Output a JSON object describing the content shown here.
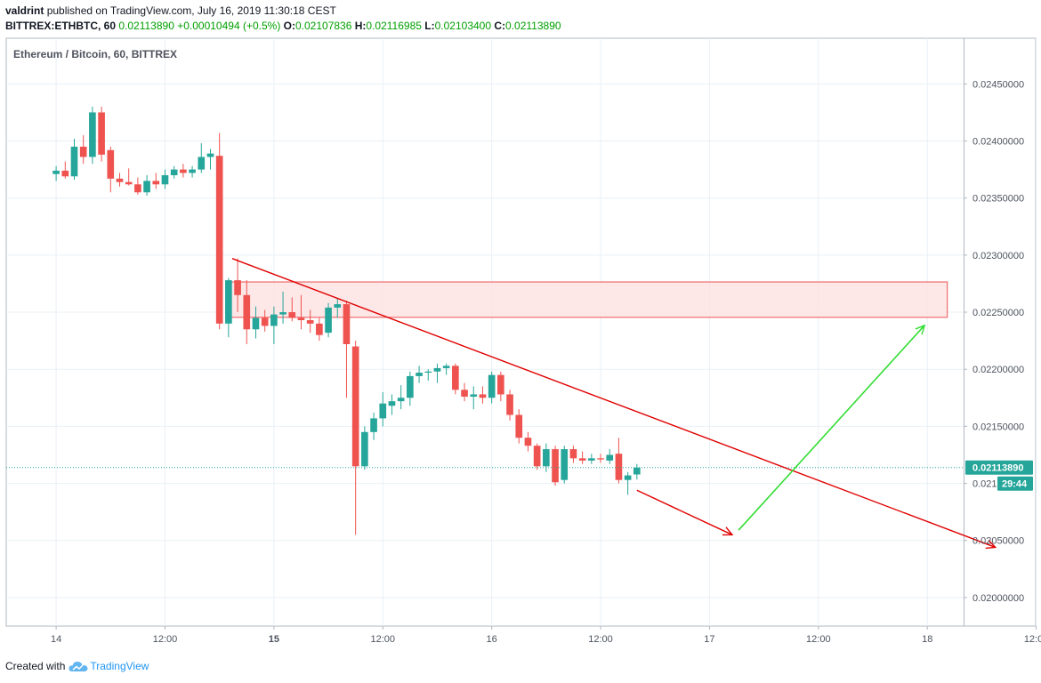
{
  "header": {
    "user": "valdrint",
    "published_text": "published on TradingView.com, July 16, 2019 11:30:18 CEST",
    "symbol": "BITTREX:ETHBTC, 60",
    "last": "0.02113890",
    "change": "+0.00010494 (+0.5%)",
    "o_label": "O:",
    "o_value": "0.02107836",
    "h_label": "H:",
    "h_value": "0.02116985",
    "l_label": "L:",
    "l_value": "0.02103400",
    "c_label": "C:",
    "c_value": "0.02113890"
  },
  "footer": {
    "created_with": "Created with",
    "brand": "TradingView"
  },
  "colors": {
    "up": "#26a69a",
    "down": "#ef5350",
    "trendline": "#e00000",
    "arrow_green": "#33dd33",
    "zone_fill": "#fde3e3",
    "zone_stroke": "#ef6b6b",
    "price_tag": "#26a69a",
    "grid": "#e9f0f6"
  },
  "chart_data": {
    "type": "candlestick",
    "title": "Ethereum / Bitcoin, 60, BITTREX",
    "x_tick_labels": [
      "14",
      "12:00",
      "15",
      "12:00",
      "16",
      "12:00",
      "17",
      "12:00",
      "18",
      "12:00"
    ],
    "x_tick_bold": [
      false,
      false,
      true,
      false,
      false,
      false,
      false,
      false,
      false,
      false
    ],
    "y_tick_labels": [
      "0.02450000",
      "0.02400000",
      "0.02350000",
      "0.02300000",
      "0.02250000",
      "0.02200000",
      "0.02150000",
      "0.02100000",
      "0.02050000",
      "0.02000000"
    ],
    "y_tick_values": [
      0.0245,
      0.024,
      0.0235,
      0.023,
      0.0225,
      0.022,
      0.0215,
      0.021,
      0.0205,
      0.02
    ],
    "x_range_hours": [
      -5.5,
      100
    ],
    "y_range": [
      0.01975,
      0.0249
    ],
    "current_price": 0.0211389,
    "current_price_label": "0.02113890",
    "countdown_label": "29:44",
    "candles": [
      {
        "t": 0,
        "o": 0.02371,
        "h": 0.02378,
        "l": 0.02365,
        "c": 0.02374
      },
      {
        "t": 1,
        "o": 0.02374,
        "h": 0.02382,
        "l": 0.02367,
        "c": 0.02369
      },
      {
        "t": 2,
        "o": 0.02369,
        "h": 0.02402,
        "l": 0.02366,
        "c": 0.02395
      },
      {
        "t": 3,
        "o": 0.02395,
        "h": 0.02405,
        "l": 0.0238,
        "c": 0.02386
      },
      {
        "t": 4,
        "o": 0.02386,
        "h": 0.0243,
        "l": 0.0238,
        "c": 0.02425
      },
      {
        "t": 5,
        "o": 0.02425,
        "h": 0.0243,
        "l": 0.02382,
        "c": 0.02388
      },
      {
        "t": 6,
        "o": 0.02392,
        "h": 0.02395,
        "l": 0.02355,
        "c": 0.02367
      },
      {
        "t": 7,
        "o": 0.02367,
        "h": 0.02372,
        "l": 0.0236,
        "c": 0.02364
      },
      {
        "t": 8,
        "o": 0.02364,
        "h": 0.02376,
        "l": 0.02361,
        "c": 0.02362
      },
      {
        "t": 9,
        "o": 0.02362,
        "h": 0.02368,
        "l": 0.02353,
        "c": 0.02355
      },
      {
        "t": 10,
        "o": 0.02355,
        "h": 0.0237,
        "l": 0.02352,
        "c": 0.02365
      },
      {
        "t": 11,
        "o": 0.02365,
        "h": 0.02372,
        "l": 0.02358,
        "c": 0.02362
      },
      {
        "t": 12,
        "o": 0.02362,
        "h": 0.02375,
        "l": 0.02358,
        "c": 0.0237
      },
      {
        "t": 13,
        "o": 0.0237,
        "h": 0.02378,
        "l": 0.02367,
        "c": 0.02375
      },
      {
        "t": 14,
        "o": 0.02375,
        "h": 0.0238,
        "l": 0.02368,
        "c": 0.02372
      },
      {
        "t": 15,
        "o": 0.02372,
        "h": 0.02378,
        "l": 0.02368,
        "c": 0.02375
      },
      {
        "t": 16,
        "o": 0.02375,
        "h": 0.02398,
        "l": 0.02372,
        "c": 0.02386
      },
      {
        "t": 17,
        "o": 0.02386,
        "h": 0.02393,
        "l": 0.02375,
        "c": 0.02389
      },
      {
        "t": 18,
        "o": 0.02387,
        "h": 0.02407,
        "l": 0.02235,
        "c": 0.0224
      },
      {
        "t": 19,
        "o": 0.0224,
        "h": 0.0228,
        "l": 0.02228,
        "c": 0.02278
      },
      {
        "t": 20,
        "o": 0.02278,
        "h": 0.02297,
        "l": 0.0225,
        "c": 0.02265
      },
      {
        "t": 21,
        "o": 0.02265,
        "h": 0.02278,
        "l": 0.02222,
        "c": 0.02235
      },
      {
        "t": 22,
        "o": 0.02235,
        "h": 0.02255,
        "l": 0.02227,
        "c": 0.02245
      },
      {
        "t": 23,
        "o": 0.02245,
        "h": 0.02252,
        "l": 0.02233,
        "c": 0.02238
      },
      {
        "t": 24,
        "o": 0.02238,
        "h": 0.02255,
        "l": 0.02222,
        "c": 0.02248
      },
      {
        "t": 25,
        "o": 0.02248,
        "h": 0.02268,
        "l": 0.0224,
        "c": 0.0225
      },
      {
        "t": 26,
        "o": 0.0225,
        "h": 0.02263,
        "l": 0.02242,
        "c": 0.02245
      },
      {
        "t": 27,
        "o": 0.02245,
        "h": 0.02265,
        "l": 0.02235,
        "c": 0.02243
      },
      {
        "t": 28,
        "o": 0.02243,
        "h": 0.02252,
        "l": 0.02232,
        "c": 0.0224
      },
      {
        "t": 29,
        "o": 0.0224,
        "h": 0.02245,
        "l": 0.02225,
        "c": 0.0223
      },
      {
        "t": 30,
        "o": 0.02232,
        "h": 0.02258,
        "l": 0.02228,
        "c": 0.02254
      },
      {
        "t": 31,
        "o": 0.02254,
        "h": 0.02262,
        "l": 0.02245,
        "c": 0.02257
      },
      {
        "t": 32,
        "o": 0.02257,
        "h": 0.0226,
        "l": 0.02175,
        "c": 0.02222
      },
      {
        "t": 33,
        "o": 0.0222,
        "h": 0.02225,
        "l": 0.02055,
        "c": 0.02115
      },
      {
        "t": 34,
        "o": 0.02115,
        "h": 0.0215,
        "l": 0.02112,
        "c": 0.02145
      },
      {
        "t": 35,
        "o": 0.02145,
        "h": 0.02162,
        "l": 0.02138,
        "c": 0.02157
      },
      {
        "t": 36,
        "o": 0.02157,
        "h": 0.0218,
        "l": 0.0215,
        "c": 0.0217
      },
      {
        "t": 37,
        "o": 0.02168,
        "h": 0.02178,
        "l": 0.0216,
        "c": 0.02172
      },
      {
        "t": 38,
        "o": 0.02172,
        "h": 0.02186,
        "l": 0.02165,
        "c": 0.02175
      },
      {
        "t": 39,
        "o": 0.02175,
        "h": 0.02198,
        "l": 0.02168,
        "c": 0.02194
      },
      {
        "t": 40,
        "o": 0.02194,
        "h": 0.02203,
        "l": 0.02188,
        "c": 0.02197
      },
      {
        "t": 41,
        "o": 0.02197,
        "h": 0.022,
        "l": 0.0219,
        "c": 0.02198
      },
      {
        "t": 42,
        "o": 0.02198,
        "h": 0.02205,
        "l": 0.02188,
        "c": 0.02201
      },
      {
        "t": 43,
        "o": 0.02201,
        "h": 0.02205,
        "l": 0.02195,
        "c": 0.02203
      },
      {
        "t": 44,
        "o": 0.02203,
        "h": 0.02205,
        "l": 0.02178,
        "c": 0.02182
      },
      {
        "t": 45,
        "o": 0.02182,
        "h": 0.02188,
        "l": 0.02172,
        "c": 0.02176
      },
      {
        "t": 46,
        "o": 0.02176,
        "h": 0.02185,
        "l": 0.02165,
        "c": 0.02178
      },
      {
        "t": 47,
        "o": 0.02178,
        "h": 0.02185,
        "l": 0.0217,
        "c": 0.02175
      },
      {
        "t": 48,
        "o": 0.02175,
        "h": 0.02198,
        "l": 0.0217,
        "c": 0.02195
      },
      {
        "t": 49,
        "o": 0.02195,
        "h": 0.02198,
        "l": 0.02172,
        "c": 0.02178
      },
      {
        "t": 50,
        "o": 0.02178,
        "h": 0.02182,
        "l": 0.02155,
        "c": 0.0216
      },
      {
        "t": 51,
        "o": 0.0216,
        "h": 0.02165,
        "l": 0.02135,
        "c": 0.0214
      },
      {
        "t": 52,
        "o": 0.0214,
        "h": 0.02145,
        "l": 0.02128,
        "c": 0.02133
      },
      {
        "t": 53,
        "o": 0.02133,
        "h": 0.02135,
        "l": 0.02112,
        "c": 0.02115
      },
      {
        "t": 54,
        "o": 0.02115,
        "h": 0.02135,
        "l": 0.0211,
        "c": 0.0213
      },
      {
        "t": 55,
        "o": 0.0213,
        "h": 0.02133,
        "l": 0.02098,
        "c": 0.02101
      },
      {
        "t": 56,
        "o": 0.02103,
        "h": 0.02133,
        "l": 0.021,
        "c": 0.0213
      },
      {
        "t": 57,
        "o": 0.0213,
        "h": 0.02133,
        "l": 0.02118,
        "c": 0.02122
      },
      {
        "t": 58,
        "o": 0.02122,
        "h": 0.02128,
        "l": 0.02117,
        "c": 0.0212
      },
      {
        "t": 59,
        "o": 0.0212,
        "h": 0.02126,
        "l": 0.02117,
        "c": 0.02122
      },
      {
        "t": 60,
        "o": 0.02122,
        "h": 0.02126,
        "l": 0.02118,
        "c": 0.02121
      },
      {
        "t": 61,
        "o": 0.0212,
        "h": 0.0213,
        "l": 0.02117,
        "c": 0.02125
      },
      {
        "t": 62,
        "o": 0.02126,
        "h": 0.0214,
        "l": 0.021,
        "c": 0.02103
      },
      {
        "t": 63,
        "o": 0.02103,
        "h": 0.0211,
        "l": 0.0209,
        "c": 0.02107
      },
      {
        "t": 64,
        "o": 0.02107836,
        "h": 0.02116985,
        "l": 0.021034,
        "c": 0.0211389
      }
    ],
    "annotations": {
      "resistance_zone": {
        "t1": 18.7,
        "t2": 98.2,
        "p_top": 0.022765,
        "p_bot": 0.022455
      },
      "trendline": {
        "t1": 19.4,
        "p1": 0.02297,
        "t2": 103.5,
        "p2": 0.02044
      },
      "red_arrow_short": {
        "t1": 64,
        "p1": 0.02094,
        "t2": 74.5,
        "p2": 0.02055
      },
      "green_arrow": {
        "t1": 75.2,
        "p1": 0.02059,
        "t2": 95.7,
        "p2": 0.022385
      }
    }
  }
}
